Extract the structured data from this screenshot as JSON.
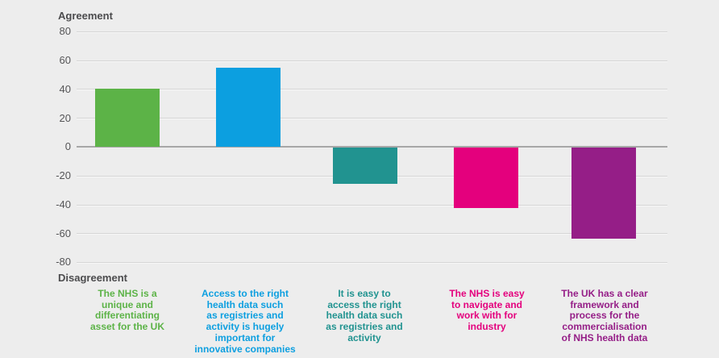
{
  "chart_data": {
    "type": "bar",
    "title": "",
    "ylabel_top": "Agreement",
    "ylabel_bottom": "Disagreement",
    "ylim": [
      -80,
      80
    ],
    "y_ticks": [
      80,
      60,
      40,
      20,
      0,
      -20,
      -40,
      -60,
      -80
    ],
    "grid": true,
    "legend": "none",
    "categories": [
      "The NHS is a\nunique and\ndifferentiating\nasset for the UK",
      "Access to the right\nhealth data such\nas registries and\nactivity is hugely\nimportant for\ninnovative companies",
      "It is easy to\naccess the right\nhealth data such\nas registries and\nactivity",
      "The NHS is easy\nto navigate and\nwork with for\nindustry",
      "The UK has a clear\nframework and\nprocess for the\ncommercialisation\nof NHS health data"
    ],
    "values": [
      40,
      55,
      -25,
      -42,
      -63
    ],
    "colors": [
      "#5cb347",
      "#0c9fe0",
      "#219390",
      "#e4007d",
      "#951e87"
    ],
    "background_color": "#ededed",
    "gridline_color": "#d5d5d5",
    "zero_axis_color": "#a7a7a7",
    "axis_text_color": "#4c4c4e"
  }
}
